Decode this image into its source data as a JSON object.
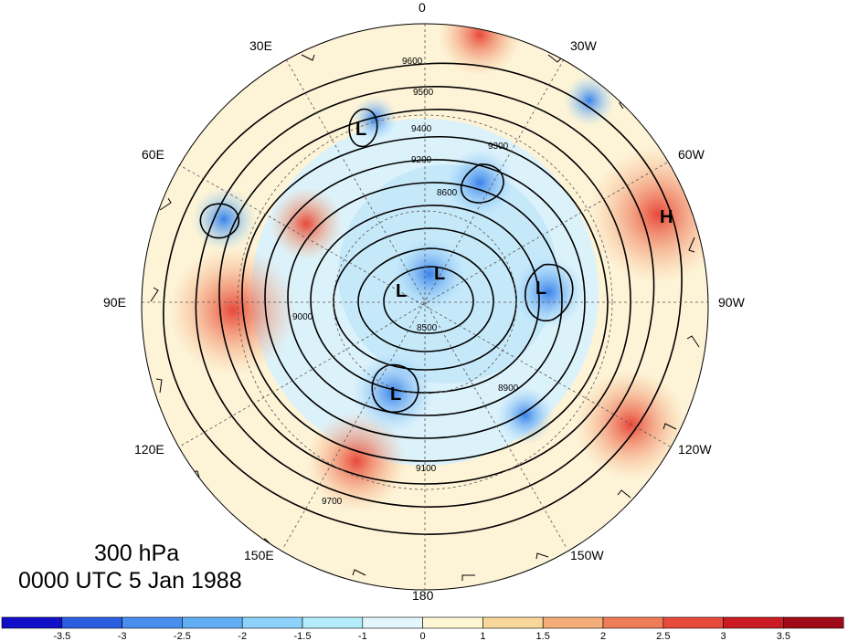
{
  "titles": {
    "level": "300 hPa",
    "time": "0000 UTC 5 Jan 1988"
  },
  "longitude_labels": [
    "0",
    "30W",
    "60W",
    "90W",
    "120W",
    "150W",
    "180",
    "150E",
    "120E",
    "90E",
    "60E",
    "30E"
  ],
  "contour_labels": [
    "9600",
    "9500",
    "9400",
    "9300",
    "9200",
    "9100",
    "9000",
    "8900",
    "8600",
    "8500",
    "9700"
  ],
  "pressure_systems": [
    "L",
    "L",
    "L",
    "L",
    "L",
    "H"
  ],
  "colorbar": {
    "ticks": [
      "-3.5",
      "-3",
      "-2.5",
      "-2",
      "-1.5",
      "-1",
      "0",
      "1",
      "1.5",
      "2",
      "2.5",
      "3",
      "3.5"
    ],
    "colors": [
      "#1010c8",
      "#2a5ee0",
      "#4a8ef0",
      "#62aef5",
      "#8cd2fa",
      "#b4ecfc",
      "#e2f6fc",
      "#fdf5d4",
      "#f8d89a",
      "#f5ae78",
      "#ef7e58",
      "#e84a3c",
      "#cc1a24",
      "#a00a18"
    ]
  }
}
